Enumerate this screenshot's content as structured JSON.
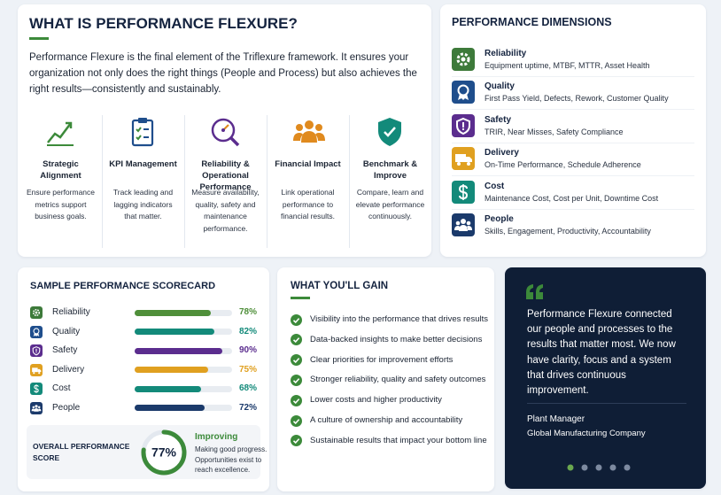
{
  "intro": {
    "title": "WHAT IS PERFORMANCE FLEXURE?",
    "text": "Performance Flexure is the final element of the Triflexure framework. It ensures your organization not only does the right things (People and Process) but also achieves the right results—consistently and sustainably.",
    "pillars": [
      {
        "title": "Strategic Alignment",
        "text": "Ensure performance metrics support business goals."
      },
      {
        "title": "KPI Management",
        "text": "Track leading and lagging indicators that matter."
      },
      {
        "title": "Reliability & Operational Performance",
        "text": "Measure availability, quality, safety and maintenance performance."
      },
      {
        "title": "Financial Impact",
        "text": "Link operational performance to financial results."
      },
      {
        "title": "Benchmark & Improve",
        "text": "Compare, learn and elevate performance continuously."
      }
    ]
  },
  "dimensions": {
    "title": "PERFORMANCE DIMENSIONS",
    "items": [
      {
        "name": "Reliability",
        "text": "Equipment uptime, MTBF, MTTR, Asset Health"
      },
      {
        "name": "Quality",
        "text": "First Pass Yield, Defects, Rework, Customer Quality"
      },
      {
        "name": "Safety",
        "text": "TRIR, Near Misses, Safety Compliance"
      },
      {
        "name": "Delivery",
        "text": "On-Time Performance, Schedule Adherence"
      },
      {
        "name": "Cost",
        "text": "Maintenance Cost, Cost per Unit, Downtime Cost"
      },
      {
        "name": "People",
        "text": "Skills, Engagement, Productivity, Accountability"
      }
    ]
  },
  "scorecard": {
    "title": "SAMPLE PERFORMANCE SCORECARD",
    "rows": [
      {
        "name": "Reliability",
        "value": 78,
        "label": "78%"
      },
      {
        "name": "Quality",
        "value": 82,
        "label": "82%"
      },
      {
        "name": "Safety",
        "value": 90,
        "label": "90%"
      },
      {
        "name": "Delivery",
        "value": 75,
        "label": "75%"
      },
      {
        "name": "Cost",
        "value": 68,
        "label": "68%"
      },
      {
        "name": "People",
        "value": 72,
        "label": "72%"
      }
    ],
    "overall": {
      "label": "OVERALL PERFORMANCE SCORE",
      "value": 77,
      "value_label": "77%",
      "status": "Improving",
      "note": "Making good progress. Opportunities exist to reach excellence."
    }
  },
  "gains": {
    "title": "WHAT YOU'LL GAIN",
    "items": [
      "Visibility into the performance that drives results",
      "Data-backed insights to make better decisions",
      "Clear priorities for improvement efforts",
      "Stronger reliability, quality and safety outcomes",
      "Lower costs and higher productivity",
      "A culture of ownership and accountability",
      "Sustainable results that impact your bottom line"
    ]
  },
  "testimonial": {
    "quote": "Performance Flexure connected our people and processes to the results that matter most. We now have clarity, focus and a system that drives continuous improvement.",
    "name": "Plant Manager",
    "company": "Global Manufacturing Company"
  }
}
